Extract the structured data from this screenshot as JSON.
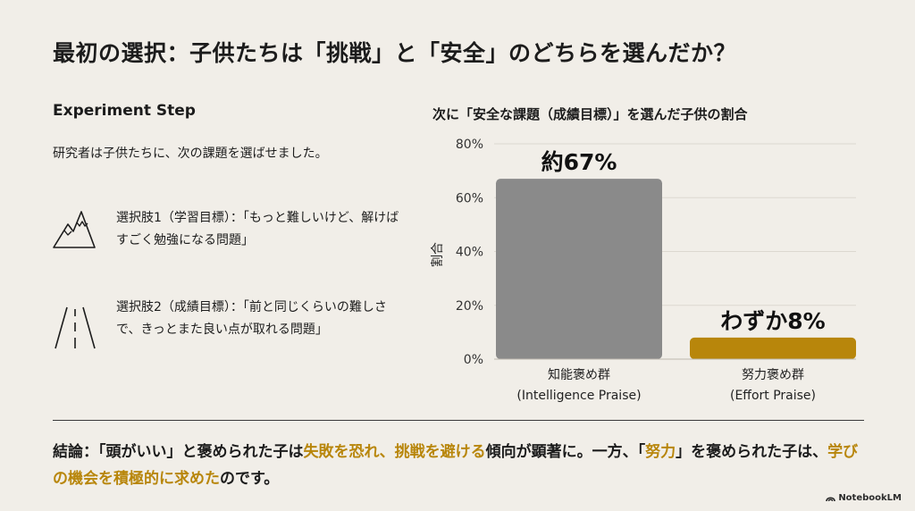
{
  "title": "最初の選択：子供たちは「挑戦」と「安全」のどちらを選んだか？",
  "step": {
    "heading": "Experiment Step",
    "intro": "研究者は子供たちに、次の課題を選ばせました。",
    "options": [
      {
        "text": "選択肢1（学習目標）：「もっと難しいけど、解けばすごく勉強になる問題」",
        "icon": "mountain-icon"
      },
      {
        "text": "選択肢2（成績目標）：「前と同じくらいの難しさで、きっとまた良い点が取れる問題」",
        "icon": "road-icon"
      }
    ]
  },
  "chart_title": "次に「安全な課題（成績目標）」を選んだ子供の割合",
  "chart_data": {
    "type": "bar",
    "title": "次に「安全な課題（成績目標）」を選んだ子供の割合",
    "ylabel": "割合",
    "xlabel": "",
    "ylim": [
      0,
      80
    ],
    "yticks": [
      "0%",
      "20%",
      "40%",
      "60%",
      "80%"
    ],
    "ytick_values": [
      0,
      20,
      40,
      60,
      80
    ],
    "grid": true,
    "categories": [
      {
        "line1": "知能褒め群",
        "line2": "(Intelligence Praise)"
      },
      {
        "line1": "努力褒め群",
        "line2": "(Effort Praise)"
      }
    ],
    "values": [
      67,
      8
    ],
    "data_labels": [
      "約67%",
      "わずか8%"
    ],
    "colors": [
      "#8a8a8a",
      "#b8860b"
    ]
  },
  "conclusion": {
    "segments": [
      {
        "text": "結論：「頭がいい」と褒められた子は",
        "highlight": false
      },
      {
        "text": "失敗を恐れ、挑戦を避ける",
        "highlight": true
      },
      {
        "text": "傾向が顕著に。一方、「",
        "highlight": false
      },
      {
        "text": "努力",
        "highlight": true
      },
      {
        "text": "」を褒められた子は、",
        "highlight": false
      },
      {
        "text": "学びの機会を積極的に求めた",
        "highlight": true
      },
      {
        "text": "のです。",
        "highlight": false
      }
    ]
  },
  "brand": "NotebookLM",
  "colors": {
    "background": "#f1eee8",
    "accent_gold": "#b8860b",
    "bar_gray": "#8a8a8a"
  }
}
